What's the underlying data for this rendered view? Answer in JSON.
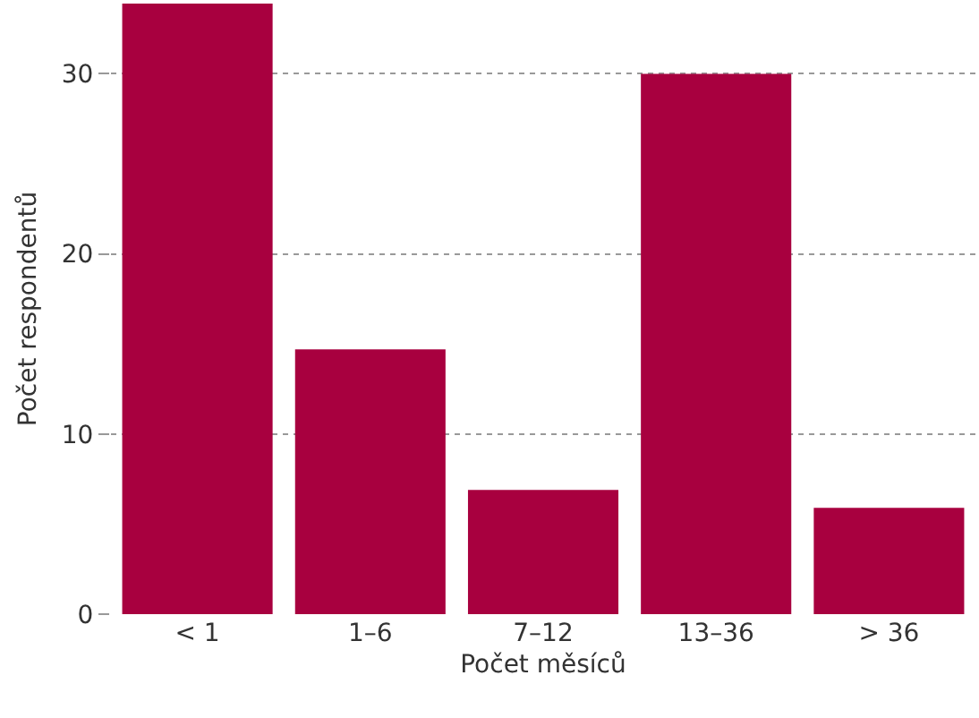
{
  "chart_data": {
    "type": "bar",
    "xlabel": "Počet měsíců",
    "ylabel": "Počet respondentů",
    "categories": [
      "< 1",
      "1–6",
      "7–12",
      "13–36",
      "> 36"
    ],
    "values": [
      33.9,
      14.7,
      6.9,
      30,
      5.9
    ],
    "color": "#a8003f",
    "ylim": [
      0,
      33.9
    ],
    "yticks": [
      0,
      10,
      20,
      30
    ],
    "grid": "y"
  }
}
